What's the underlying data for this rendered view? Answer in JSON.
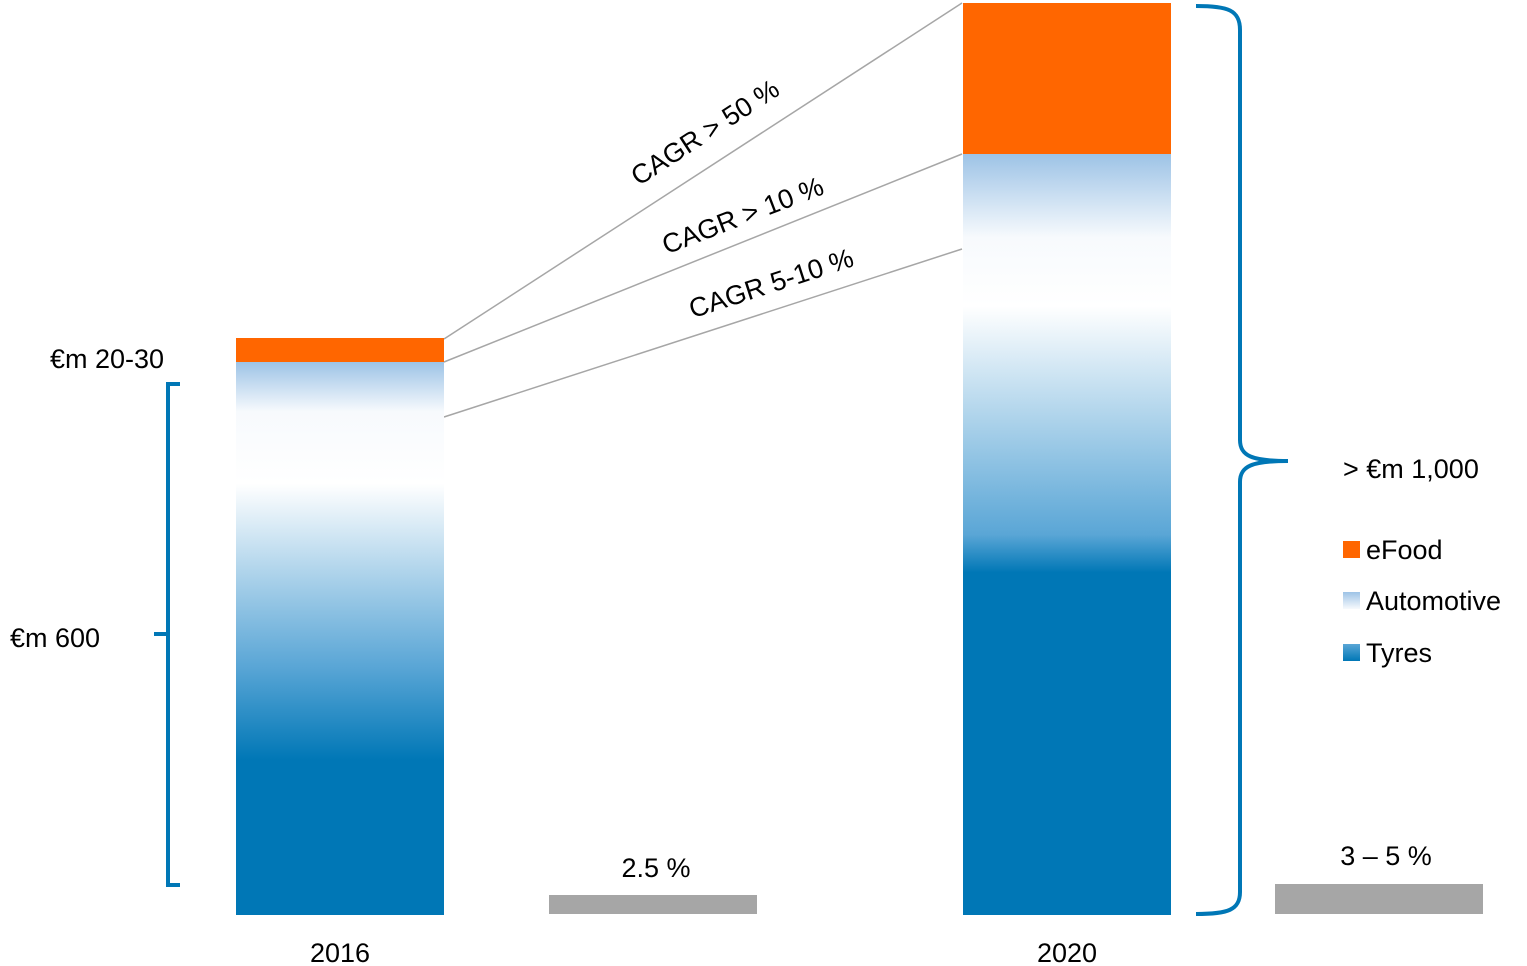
{
  "chart_data": {
    "type": "bar",
    "stacked": true,
    "categories": [
      "2016",
      "2020"
    ],
    "series": [
      {
        "name": "Tyres",
        "color": "#0077B6"
      },
      {
        "name": "Automotive",
        "color": "#9DC3E6"
      },
      {
        "name": "eFood",
        "color": "#FF6600"
      }
    ],
    "annotations": {
      "label_2016_total": "€m 600",
      "label_2016_efood": "€m 20-30",
      "label_2020_total": "> €m 1,000",
      "cagr_efood": "CAGR > 50 %",
      "cagr_automotive": "CAGR > 10 %",
      "cagr_tyres": "CAGR 5-10 %",
      "margin_2016": "2.5 %",
      "margin_2020": "3 – 5 %"
    },
    "legend": {
      "placement": "right",
      "items": [
        {
          "label": "eFood",
          "icon": "solid",
          "color": "#FF6600"
        },
        {
          "label": "Automotive",
          "icon": "gradient",
          "color": "#9DC3E6"
        },
        {
          "label": "Tyres",
          "icon": "gradient",
          "color": "#0077B6"
        }
      ]
    },
    "colors": {
      "brace": "#0077B6",
      "margin_bar": "#A6A6A6",
      "connector": "#A6A6A6",
      "gradient_light": "#F7FAFD"
    }
  }
}
